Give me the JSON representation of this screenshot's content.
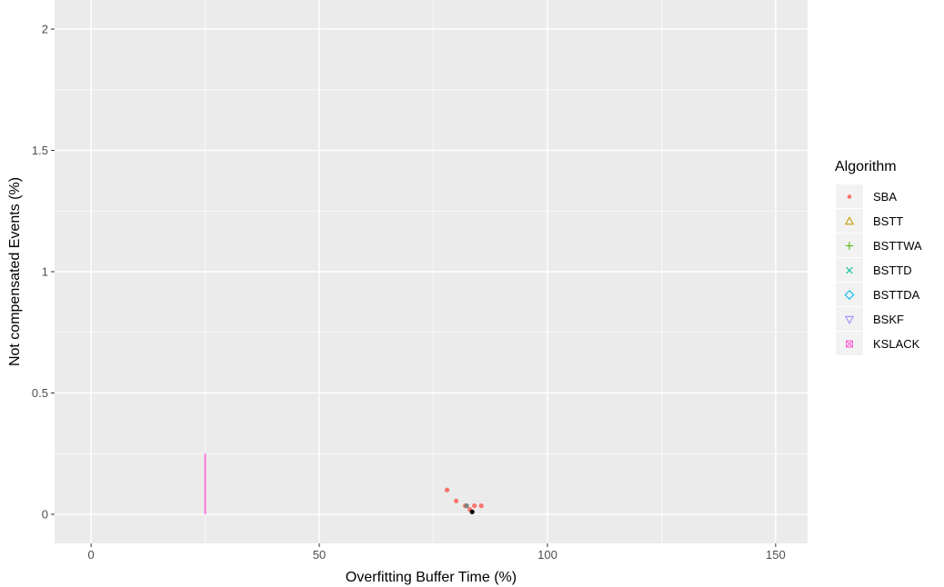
{
  "chart_data": {
    "type": "scatter",
    "title": "",
    "xlabel": "Overfitting Buffer Time (%)",
    "ylabel": "Not compensated Events (%)",
    "xlim": [
      -8,
      157
    ],
    "ylim": [
      -0.12,
      2.12
    ],
    "x_ticks": [
      0,
      50,
      100,
      150
    ],
    "x_tick_labels": [
      "0",
      "50",
      "100",
      "150"
    ],
    "y_ticks": [
      0,
      0.5,
      1,
      1.5,
      2
    ],
    "y_tick_labels": [
      "0",
      "0.5",
      "1",
      "1.5",
      "2"
    ],
    "grid": true,
    "panel_background": "#EBEBEB",
    "legend": {
      "title": "Algorithm",
      "position": "right"
    },
    "series": [
      {
        "name": "SBA",
        "color": "#F8766D",
        "shape": "dot",
        "points": [
          {
            "x": 78,
            "y": 0.1
          },
          {
            "x": 80,
            "y": 0.055
          },
          {
            "x": 82,
            "y": 0.035
          },
          {
            "x": 84,
            "y": 0.035
          },
          {
            "x": 85.5,
            "y": 0.035
          },
          {
            "x": 83,
            "y": 0.02
          }
        ]
      },
      {
        "name": "BSTT",
        "color": "#C49A00",
        "shape": "triangle-up",
        "points": []
      },
      {
        "name": "BSTTWA",
        "color": "#53B400",
        "shape": "plus",
        "points": []
      },
      {
        "name": "BSTTD",
        "color": "#00C094",
        "shape": "cross",
        "points": []
      },
      {
        "name": "BSTTDA",
        "color": "#00B6EB",
        "shape": "diamond",
        "points": []
      },
      {
        "name": "BSKF",
        "color": "#A58AFF",
        "shape": "triangle-down",
        "points": []
      },
      {
        "name": "KSLACK",
        "color": "#FB61D7",
        "shape": "square-cross",
        "points": [],
        "segments": [
          {
            "x": 25,
            "y0": 0,
            "y1": 0.25
          }
        ]
      }
    ],
    "extra_points": [
      {
        "x": 82.3,
        "y": 0.035,
        "color": "#7F7F7F"
      },
      {
        "x": 83.5,
        "y": 0.01,
        "color": "#000000"
      }
    ]
  }
}
